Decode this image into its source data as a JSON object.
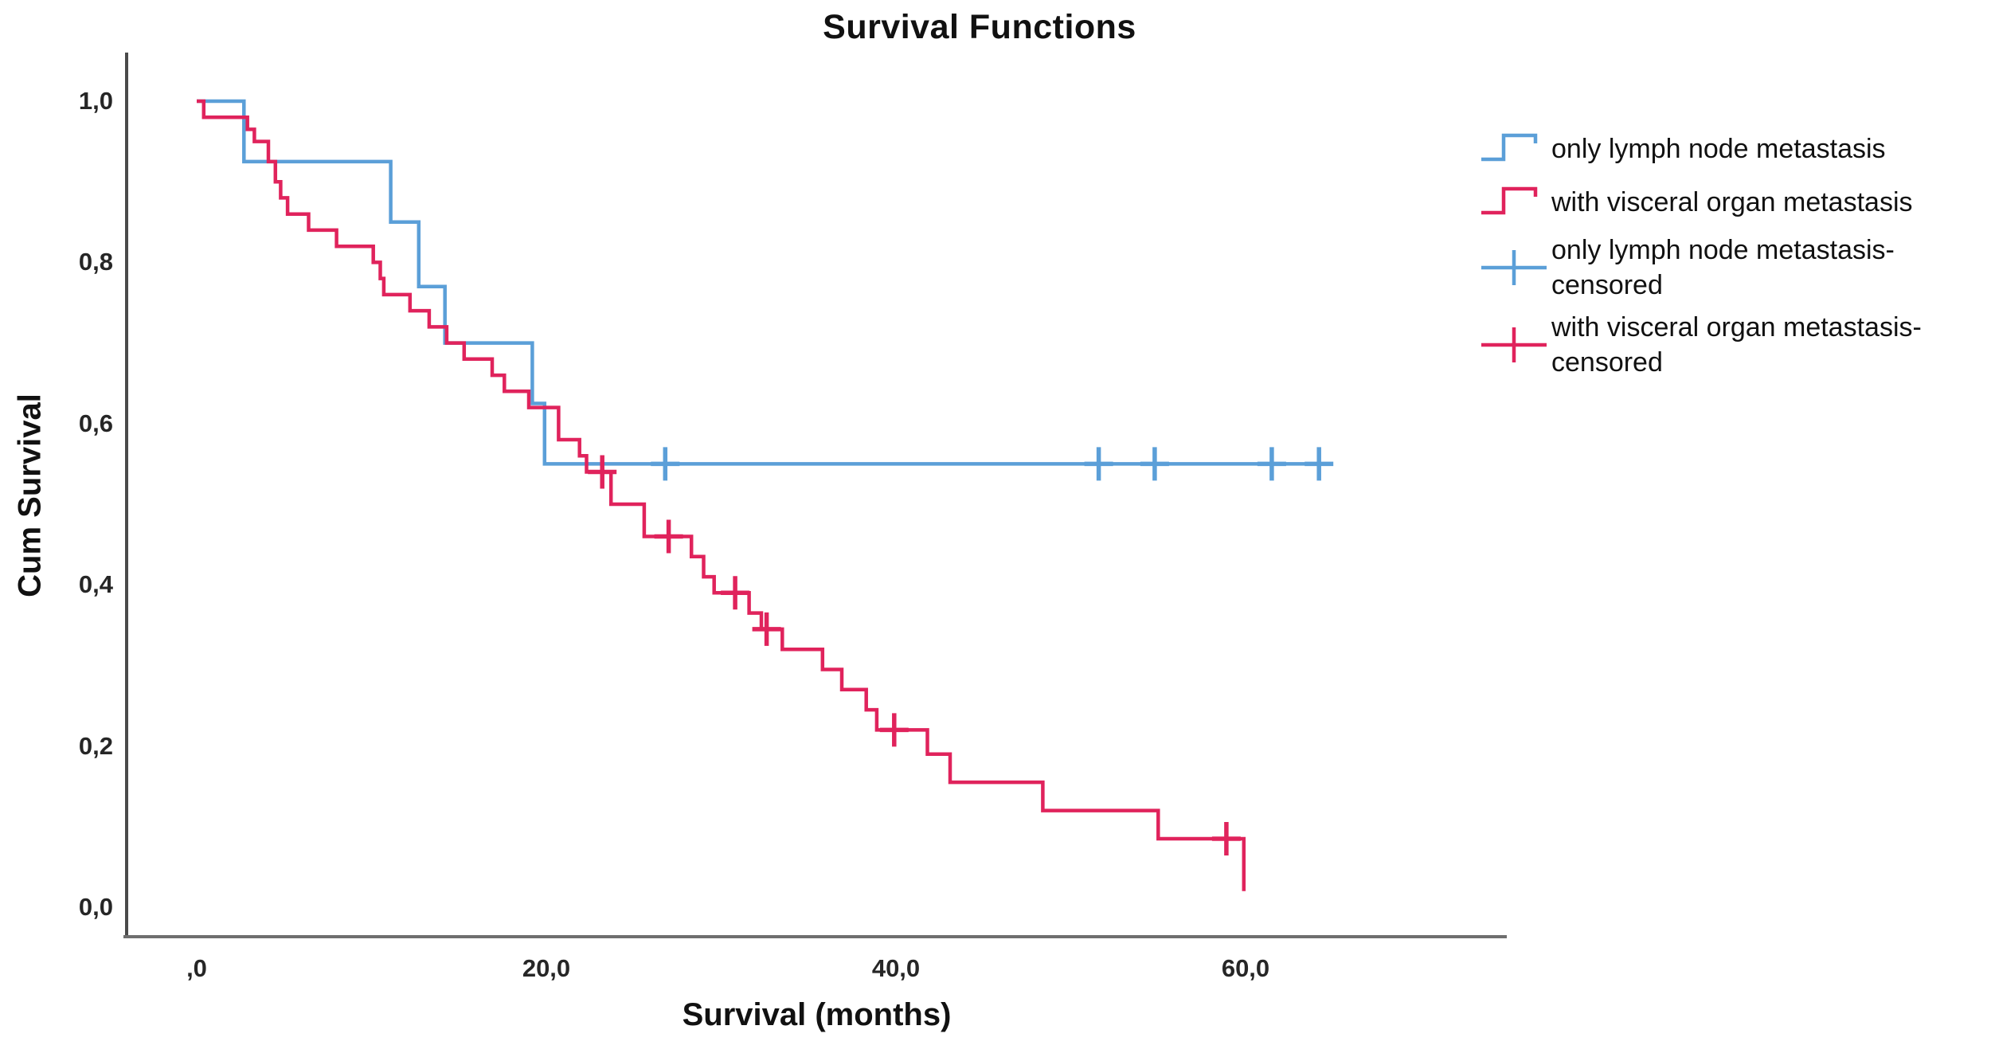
{
  "chart_data": {
    "type": "line",
    "subtype": "kaplan-meier-step-survival",
    "title": "Survival Functions",
    "xlabel": "Survival (months)",
    "ylabel": "Cum Survival",
    "xlim": [
      -4,
      75
    ],
    "ylim": [
      0.0,
      1.0
    ],
    "grid": false,
    "legend_position": "right",
    "x_axis": {
      "tick_values": [
        0,
        20,
        40,
        60
      ],
      "tick_labels": [
        ",0",
        "20,0",
        "40,0",
        "60,0"
      ],
      "decimal_separator": "comma"
    },
    "y_axis": {
      "tick_values": [
        1.0,
        0.8,
        0.6,
        0.4,
        0.2,
        0.0
      ],
      "tick_labels": [
        "1,0",
        "0,8",
        "0,6",
        "0,4",
        "0,2",
        "0,0"
      ]
    },
    "series": [
      {
        "name": "only lymph node metastasis",
        "color": "#5B9FD8",
        "end_time": 64.8,
        "steps": [
          [
            0,
            1.0
          ],
          [
            2.7,
            0.925
          ],
          [
            11.1,
            0.85
          ],
          [
            12.7,
            0.77
          ],
          [
            14.2,
            0.7
          ],
          [
            19.2,
            0.625
          ],
          [
            19.9,
            0.55
          ]
        ],
        "censored": [
          [
            26.8,
            0.55
          ],
          [
            51.6,
            0.55
          ],
          [
            54.8,
            0.55
          ],
          [
            61.5,
            0.55
          ],
          [
            64.2,
            0.55
          ]
        ]
      },
      {
        "name": "with visceral organ metastasis",
        "color": "#E0235C",
        "end_time": 59.9,
        "steps": [
          [
            0,
            1.0
          ],
          [
            0.4,
            0.98
          ],
          [
            2.9,
            0.965
          ],
          [
            3.3,
            0.95
          ],
          [
            4.1,
            0.925
          ],
          [
            4.5,
            0.9
          ],
          [
            4.8,
            0.88
          ],
          [
            5.2,
            0.86
          ],
          [
            6.4,
            0.84
          ],
          [
            8.0,
            0.82
          ],
          [
            10.1,
            0.8
          ],
          [
            10.5,
            0.78
          ],
          [
            10.7,
            0.76
          ],
          [
            12.2,
            0.74
          ],
          [
            13.3,
            0.72
          ],
          [
            14.3,
            0.7
          ],
          [
            15.3,
            0.68
          ],
          [
            16.9,
            0.66
          ],
          [
            17.6,
            0.64
          ],
          [
            19.0,
            0.62
          ],
          [
            20.7,
            0.58
          ],
          [
            21.9,
            0.56
          ],
          [
            22.3,
            0.54
          ],
          [
            23.7,
            0.5
          ],
          [
            25.6,
            0.46
          ],
          [
            28.3,
            0.435
          ],
          [
            29.0,
            0.41
          ],
          [
            29.6,
            0.39
          ],
          [
            31.6,
            0.365
          ],
          [
            32.3,
            0.345
          ],
          [
            33.5,
            0.32
          ],
          [
            35.8,
            0.295
          ],
          [
            36.9,
            0.27
          ],
          [
            38.3,
            0.245
          ],
          [
            38.9,
            0.22
          ],
          [
            41.8,
            0.19
          ],
          [
            43.1,
            0.155
          ],
          [
            48.4,
            0.12
          ],
          [
            55.0,
            0.085
          ],
          [
            59.9,
            0.02
          ]
        ],
        "censored": [
          [
            23.2,
            0.54
          ],
          [
            27.0,
            0.46
          ],
          [
            30.8,
            0.39
          ],
          [
            32.6,
            0.345
          ],
          [
            39.9,
            0.22
          ],
          [
            58.9,
            0.085
          ]
        ]
      }
    ],
    "legend": [
      {
        "label": "only lymph node metastasis",
        "marker": "step",
        "color": "#5B9FD8"
      },
      {
        "label": "with visceral organ metastasis",
        "marker": "step",
        "color": "#E0235C"
      },
      {
        "label": "only lymph node metastasis-censored",
        "marker": "plus",
        "color": "#5B9FD8"
      },
      {
        "label": "with visceral organ metastasis-censored",
        "marker": "plus",
        "color": "#E0235C"
      }
    ]
  }
}
